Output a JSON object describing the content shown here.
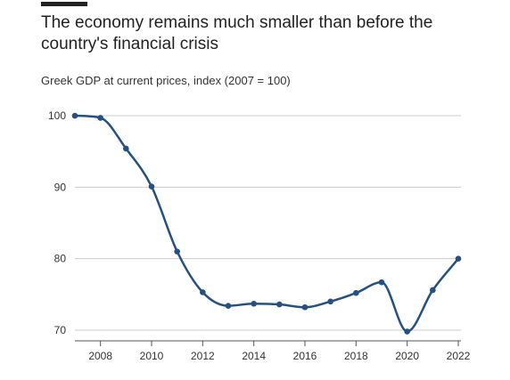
{
  "header": {
    "title": "The economy remains much smaller than before the country's financial crisis",
    "subtitle": "Greek GDP at current prices, index (2007 = 100)"
  },
  "colors": {
    "line": "#25507f",
    "grid": "#cccccc",
    "axis": "#555555",
    "accent_bar": "#222222"
  },
  "chart_data": {
    "type": "line",
    "title": "The economy remains much smaller than before the country's financial crisis",
    "subtitle": "Greek GDP at current prices, index (2007 = 100)",
    "xlabel": "",
    "ylabel": "",
    "x": [
      2007,
      2008,
      2009,
      2010,
      2011,
      2012,
      2013,
      2014,
      2015,
      2016,
      2017,
      2018,
      2019,
      2020,
      2021,
      2022
    ],
    "series": [
      {
        "values": [
          100,
          99.7,
          95.4,
          90.1,
          81.0,
          75.3,
          73.4,
          73.7,
          73.6,
          73.2,
          74.0,
          75.2,
          76.7,
          69.8,
          75.6,
          80.0
        ]
      }
    ],
    "xticks": [
      "2008",
      "2010",
      "2012",
      "2014",
      "2016",
      "2018",
      "2020",
      "2022"
    ],
    "yticks": [
      "70",
      "80",
      "90",
      "100"
    ],
    "xlim": [
      2007,
      2022
    ],
    "ylim": [
      68.5,
      101.5
    ],
    "grid": true,
    "legend": "none"
  }
}
